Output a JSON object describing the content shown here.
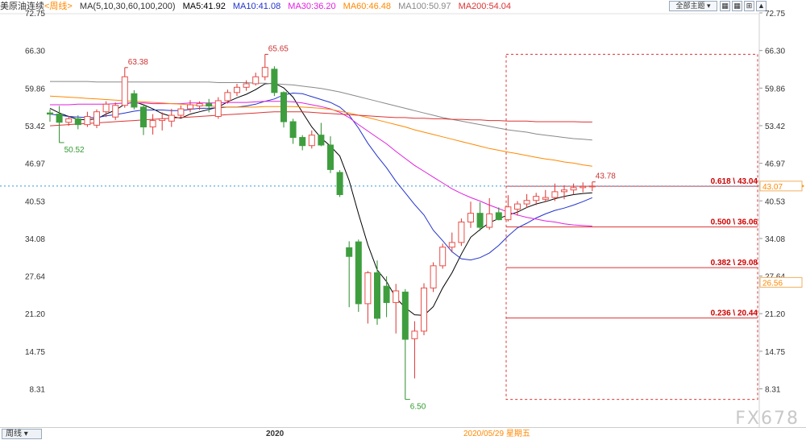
{
  "header": {
    "symbol": "美原油连续",
    "period": "<周线>",
    "ma_params": "MA(5,10,30,60,100,200)",
    "ma5": "MA5:41.92",
    "ma10": "MA10:41.08",
    "ma30": "MA30:36.20",
    "ma60": "MA60:46.48",
    "ma100": "MA100:50.97",
    "ma200": "MA200:54.04",
    "subject_button": "全部主题",
    "colors": {
      "ma5": "#000000",
      "ma10": "#2233cc",
      "ma30": "#e020e0",
      "ma60": "#ff8800",
      "ma100": "#888888",
      "ma200": "#dd3333"
    }
  },
  "footer": {
    "period_button": "周线",
    "year_label": "2020",
    "date_label": "2020/05/29 星期五",
    "watermark": "FX678"
  },
  "chart_data": {
    "type": "candlestick",
    "ylim": [
      6.5,
      72.75
    ],
    "y_ticks": [
      "72.75",
      "66.30",
      "59.86",
      "53.42",
      "46.97",
      "40.53",
      "34.08",
      "27.64",
      "21.20",
      "14.75",
      "8.31"
    ],
    "price_badges": [
      {
        "value": "43.07",
        "color": "#ff8800"
      },
      {
        "value": "26.56",
        "color": "#ff8800"
      }
    ],
    "current_price": 43.07,
    "annotations": [
      {
        "label": "63.38",
        "value": 63.38,
        "color": "#cc3333"
      },
      {
        "label": "50.52",
        "value": 50.52,
        "color": "#339933"
      },
      {
        "label": "65.65",
        "value": 65.65,
        "color": "#cc3333"
      },
      {
        "label": "6.50",
        "value": 6.5,
        "color": "#339933"
      },
      {
        "label": "43.78",
        "value": 43.78,
        "color": "#cc3333"
      }
    ],
    "fibonacci": [
      {
        "label": "0.618 \\ 43.04",
        "value": 43.04
      },
      {
        "label": "0.500 \\ 36.06",
        "value": 36.06
      },
      {
        "label": "0.382 \\ 29.08",
        "value": 29.08
      },
      {
        "label": "0.236 \\ 20.44",
        "value": 20.44
      }
    ],
    "fib_box": {
      "high": 65.65,
      "low": 6.5
    },
    "candles": [
      [
        55.6,
        56.2,
        54.1,
        55.4
      ],
      [
        55.4,
        56.8,
        50.5,
        54.0
      ],
      [
        54.0,
        55.1,
        53.4,
        54.6
      ],
      [
        54.6,
        55.2,
        52.8,
        53.6
      ],
      [
        53.6,
        55.8,
        53.2,
        55.0
      ],
      [
        53.5,
        56.2,
        53.0,
        55.8
      ],
      [
        55.8,
        57.6,
        54.9,
        57.1
      ],
      [
        54.9,
        57.4,
        54.4,
        56.9
      ],
      [
        56.9,
        63.38,
        56.5,
        61.8
      ],
      [
        58.9,
        59.5,
        56.2,
        56.6
      ],
      [
        56.6,
        57.1,
        51.8,
        53.2
      ],
      [
        53.2,
        55.4,
        51.9,
        54.3
      ],
      [
        54.3,
        55.7,
        52.6,
        54.6
      ],
      [
        54.2,
        56.3,
        53.2,
        55.2
      ],
      [
        55.2,
        56.9,
        54.8,
        56.3
      ],
      [
        56.3,
        57.8,
        55.7,
        57.0
      ],
      [
        56.8,
        57.6,
        56.1,
        57.2
      ],
      [
        57.2,
        58.0,
        55.7,
        56.8
      ],
      [
        55.0,
        58.3,
        54.6,
        57.7
      ],
      [
        57.7,
        59.6,
        57.2,
        59.1
      ],
      [
        59.1,
        60.6,
        58.5,
        60.0
      ],
      [
        60.0,
        61.2,
        59.4,
        60.6
      ],
      [
        60.6,
        62.5,
        60.3,
        61.8
      ],
      [
        61.8,
        65.65,
        61.2,
        63.4
      ],
      [
        63.1,
        63.6,
        58.5,
        59.1
      ],
      [
        59.1,
        59.3,
        53.1,
        54.1
      ],
      [
        54.1,
        54.6,
        50.3,
        51.4
      ],
      [
        51.4,
        51.8,
        49.2,
        50.0
      ],
      [
        50.0,
        52.6,
        49.5,
        51.8
      ],
      [
        51.8,
        53.9,
        49.9,
        50.1
      ],
      [
        50.1,
        51.6,
        45.3,
        45.9
      ],
      [
        45.4,
        45.8,
        41.2,
        41.6
      ],
      [
        32.5,
        33.6,
        22.3,
        31.0
      ],
      [
        33.5,
        33.9,
        21.5,
        22.9
      ],
      [
        22.9,
        28.5,
        19.5,
        28.2
      ],
      [
        28.2,
        30.3,
        19.3,
        20.4
      ],
      [
        25.9,
        27.6,
        20.6,
        23.1
      ],
      [
        23.1,
        26.3,
        17.8,
        25.1
      ],
      [
        24.9,
        25.4,
        6.5,
        16.8
      ],
      [
        16.9,
        19.9,
        10.1,
        18.2
      ],
      [
        18.2,
        26.4,
        17.5,
        25.6
      ],
      [
        25.6,
        30.0,
        24.9,
        29.4
      ],
      [
        29.4,
        33.2,
        28.9,
        32.6
      ],
      [
        32.6,
        35.1,
        31.7,
        33.4
      ],
      [
        33.4,
        37.5,
        32.8,
        36.9
      ],
      [
        36.9,
        40.4,
        35.9,
        38.4
      ],
      [
        38.4,
        40.3,
        35.4,
        36.0
      ],
      [
        36.0,
        41.0,
        35.6,
        38.3
      ],
      [
        38.5,
        39.4,
        37.2,
        37.3
      ],
      [
        37.3,
        41.5,
        37.0,
        39.5
      ],
      [
        39.1,
        40.5,
        38.0,
        40.0
      ],
      [
        40.0,
        41.7,
        39.3,
        40.6
      ],
      [
        40.6,
        41.9,
        39.8,
        41.3
      ],
      [
        40.8,
        42.4,
        40.3,
        41.1
      ],
      [
        41.1,
        43.5,
        40.5,
        42.1
      ],
      [
        42.1,
        43.2,
        40.8,
        42.4
      ],
      [
        42.4,
        43.5,
        41.6,
        42.8
      ],
      [
        42.8,
        43.7,
        42.0,
        43.0
      ],
      [
        43.0,
        43.78,
        42.2,
        43.07
      ]
    ],
    "ma_lines": [
      {
        "name": "MA5",
        "color": "#000000",
        "start": 0,
        "values": [
          56.4,
          55.6,
          55.0,
          54.5,
          54.4,
          54.6,
          55.4,
          56.1,
          57.1,
          57.5,
          57.0,
          56.3,
          55.5,
          55.0,
          54.7,
          55.4,
          55.8,
          56.2,
          56.6,
          57.5,
          58.2,
          58.8,
          59.6,
          60.6,
          60.7,
          59.9,
          58.3,
          55.7,
          53.2,
          51.3,
          49.9,
          48.2,
          44.0,
          38.3,
          33.0,
          28.7,
          26.7,
          23.9,
          22.2,
          21.0,
          20.9,
          22.4,
          25.6,
          28.2,
          31.4,
          34.3,
          35.6,
          36.8,
          37.5,
          38.1,
          38.6,
          39.4,
          40.0,
          40.4,
          40.9,
          41.3,
          41.6,
          41.8,
          41.92
        ]
      },
      {
        "name": "MA10",
        "color": "#2233cc",
        "start": 0,
        "values": [
          55.4,
          55.2,
          55.0,
          54.9,
          54.8,
          54.8,
          55.1,
          55.3,
          55.6,
          55.9,
          56.1,
          56.1,
          56.1,
          56.0,
          56.0,
          56.2,
          56.4,
          56.4,
          56.5,
          56.6,
          56.6,
          56.8,
          57.1,
          57.6,
          58.0,
          58.7,
          59.0,
          58.9,
          58.4,
          57.9,
          57.4,
          56.6,
          55.2,
          53.0,
          50.4,
          48.2,
          46.2,
          43.9,
          41.9,
          39.9,
          38.1,
          35.5,
          33.7,
          31.8,
          30.6,
          30.4,
          30.8,
          31.6,
          32.9,
          34.5,
          35.9,
          36.7,
          37.6,
          38.3,
          38.9,
          39.3,
          39.8,
          40.4,
          41.08
        ]
      },
      {
        "name": "MA30",
        "color": "#e020e0",
        "start": 0,
        "values": [
          57.0,
          57.0,
          57.0,
          57.1,
          57.1,
          57.1,
          57.1,
          57.2,
          57.3,
          57.3,
          57.3,
          57.2,
          57.2,
          57.2,
          57.2,
          57.3,
          57.3,
          57.3,
          57.3,
          57.4,
          57.4,
          57.4,
          57.5,
          57.6,
          57.6,
          57.6,
          57.5,
          57.3,
          57.0,
          56.7,
          56.3,
          55.7,
          54.8,
          53.6,
          52.5,
          51.4,
          50.3,
          49.0,
          47.8,
          46.6,
          45.6,
          44.6,
          43.6,
          42.6,
          41.8,
          41.1,
          40.5,
          39.8,
          39.2,
          38.6,
          38.1,
          37.7,
          37.4,
          37.1,
          36.9,
          36.6,
          36.4,
          36.3,
          36.2
        ]
      },
      {
        "name": "MA60",
        "color": "#ff8800",
        "start": 0,
        "values": [
          58.5,
          58.4,
          58.3,
          58.2,
          58.1,
          58.0,
          57.9,
          57.8,
          57.7,
          57.6,
          57.5,
          57.4,
          57.3,
          57.2,
          57.1,
          57.0,
          56.9,
          56.8,
          56.7,
          56.6,
          56.6,
          56.6,
          56.6,
          56.7,
          56.7,
          56.7,
          56.7,
          56.6,
          56.5,
          56.4,
          56.2,
          55.9,
          55.6,
          55.2,
          54.8,
          54.4,
          54.0,
          53.6,
          53.2,
          52.7,
          52.3,
          51.9,
          51.5,
          51.1,
          50.7,
          50.3,
          49.9,
          49.5,
          49.2,
          48.9,
          48.6,
          48.3,
          48.0,
          47.7,
          47.5,
          47.2,
          47.0,
          46.7,
          46.48
        ]
      },
      {
        "name": "MA100",
        "color": "#888888",
        "start": 0,
        "values": [
          61.0,
          61.0,
          61.0,
          61.0,
          61.0,
          60.9,
          60.9,
          60.9,
          60.9,
          60.9,
          60.9,
          60.9,
          60.9,
          60.9,
          60.9,
          60.9,
          60.9,
          60.9,
          60.8,
          60.8,
          60.8,
          60.8,
          60.7,
          60.7,
          60.6,
          60.5,
          60.4,
          60.2,
          60.0,
          59.8,
          59.5,
          59.2,
          58.8,
          58.4,
          58.0,
          57.6,
          57.2,
          56.8,
          56.4,
          56.0,
          55.6,
          55.2,
          54.8,
          54.5,
          54.2,
          53.9,
          53.6,
          53.3,
          53.0,
          52.7,
          52.5,
          52.3,
          52.0,
          51.8,
          51.6,
          51.4,
          51.2,
          51.1,
          50.97
        ]
      },
      {
        "name": "MA200",
        "color": "#dd3333",
        "start": 0,
        "values": [
          53.4,
          53.5,
          53.6,
          53.7,
          53.8,
          53.9,
          54.0,
          54.1,
          54.2,
          54.3,
          54.4,
          54.5,
          54.6,
          54.7,
          54.8,
          54.9,
          55.0,
          55.1,
          55.2,
          55.3,
          55.4,
          55.5,
          55.6,
          55.7,
          55.8,
          55.8,
          55.8,
          55.8,
          55.7,
          55.6,
          55.5,
          55.4,
          55.3,
          55.2,
          55.1,
          55.0,
          54.9,
          54.8,
          54.8,
          54.7,
          54.7,
          54.6,
          54.6,
          54.5,
          54.5,
          54.4,
          54.4,
          54.3,
          54.3,
          54.2,
          54.2,
          54.2,
          54.1,
          54.1,
          54.1,
          54.1,
          54.1,
          54.04,
          54.04
        ]
      }
    ]
  }
}
